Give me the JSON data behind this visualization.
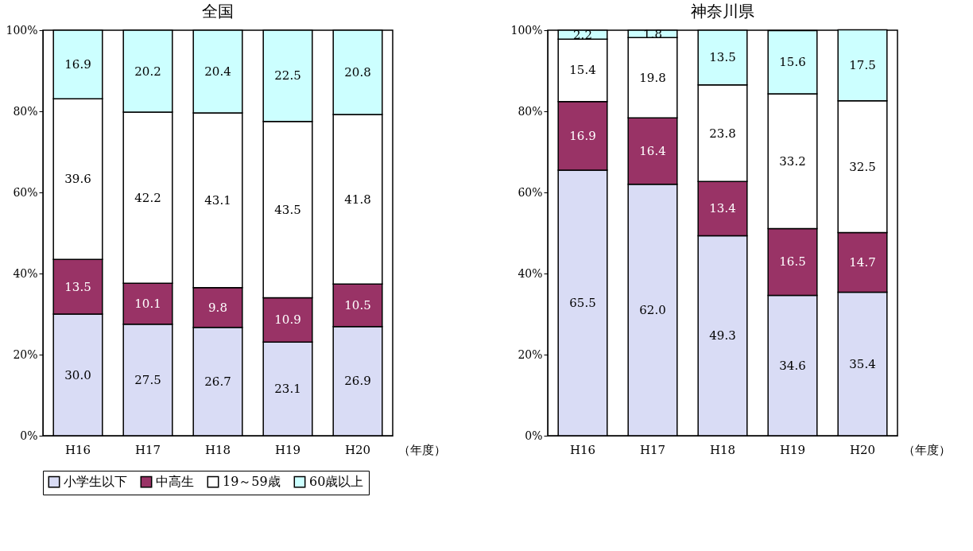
{
  "chart_data": [
    {
      "type": "bar",
      "title": "全国",
      "xlabel": "（年度）",
      "categories": [
        "H16",
        "H17",
        "H18",
        "H19",
        "H20"
      ],
      "stacked": true,
      "ylim": [
        0,
        100
      ],
      "yticks": [
        {
          "value": 0,
          "label": "0%"
        },
        {
          "value": 20,
          "label": "20%"
        },
        {
          "value": 40,
          "label": "40%"
        },
        {
          "value": 60,
          "label": "60%"
        },
        {
          "value": 80,
          "label": "80%"
        },
        {
          "value": 100,
          "label": "100%"
        }
      ],
      "legend": "bottom",
      "grid": false,
      "series": [
        {
          "name": "小学生以下",
          "color": "#d9dcf5",
          "values": [
            30.0,
            27.5,
            26.7,
            23.1,
            26.9
          ],
          "value_labels": [
            "30.0",
            "27.5",
            "26.7",
            "23.1",
            "26.9"
          ]
        },
        {
          "name": "中高生",
          "color": "#993366",
          "values": [
            13.5,
            10.1,
            9.8,
            10.9,
            10.5
          ],
          "value_labels": [
            "13.5",
            "10.1",
            "9.8",
            "10.9",
            "10.5"
          ]
        },
        {
          "name": "19～59歳",
          "color": "#ffffff",
          "values": [
            39.6,
            42.2,
            43.1,
            43.5,
            41.8
          ],
          "value_labels": [
            "39.6",
            "42.2",
            "43.1",
            "43.5",
            "41.8"
          ]
        },
        {
          "name": "60歳以上",
          "color": "#ccffff",
          "values": [
            16.9,
            20.2,
            20.4,
            22.5,
            20.8
          ],
          "value_labels": [
            "16.9",
            "20.2",
            "20.4",
            "22.5",
            "20.8"
          ]
        }
      ]
    },
    {
      "type": "bar",
      "title": "神奈川県",
      "xlabel": "（年度）",
      "categories": [
        "H16",
        "H17",
        "H18",
        "H19",
        "H20"
      ],
      "stacked": true,
      "ylim": [
        0,
        100
      ],
      "yticks": [
        {
          "value": 0,
          "label": "0%"
        },
        {
          "value": 20,
          "label": "20%"
        },
        {
          "value": 40,
          "label": "40%"
        },
        {
          "value": 60,
          "label": "60%"
        },
        {
          "value": 80,
          "label": "80%"
        },
        {
          "value": 100,
          "label": "100%"
        }
      ],
      "legend": "bottom",
      "grid": false,
      "series": [
        {
          "name": "小学生以下",
          "color": "#d9dcf5",
          "values": [
            65.5,
            62.0,
            49.3,
            34.6,
            35.4
          ],
          "value_labels": [
            "65.5",
            "62.0",
            "49.3",
            "34.6",
            "35.4"
          ]
        },
        {
          "name": "中高生",
          "color": "#993366",
          "values": [
            16.9,
            16.4,
            13.4,
            16.5,
            14.7
          ],
          "value_labels": [
            "16.9",
            "16.4",
            "13.4",
            "16.5",
            "14.7"
          ]
        },
        {
          "name": "19～59歳",
          "color": "#ffffff",
          "values": [
            15.4,
            19.8,
            23.8,
            33.2,
            32.5
          ],
          "value_labels": [
            "15.4",
            "19.8",
            "23.8",
            "33.2",
            "32.5"
          ]
        },
        {
          "name": "60歳以上",
          "color": "#ccffff",
          "values": [
            2.2,
            1.8,
            13.5,
            15.6,
            17.5
          ],
          "value_labels": [
            "2.2",
            "1.8",
            "13.5",
            "15.6",
            "17.5"
          ]
        }
      ]
    }
  ]
}
